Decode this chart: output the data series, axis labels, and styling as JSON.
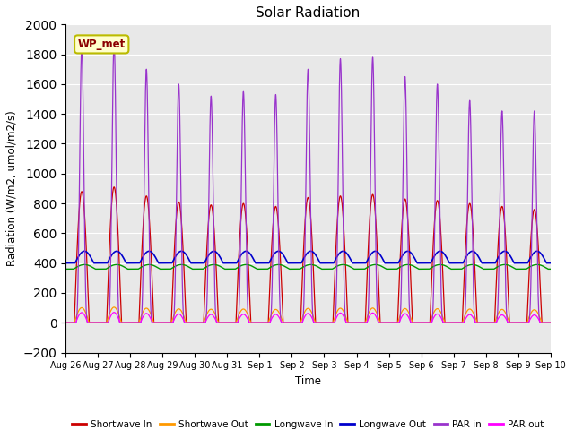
{
  "title": "Solar Radiation",
  "ylabel": "Radiation (W/m2, umol/m2/s)",
  "xlabel": "Time",
  "ylim": [
    -200,
    2000
  ],
  "yticks": [
    -200,
    0,
    200,
    400,
    600,
    800,
    1000,
    1200,
    1400,
    1600,
    1800,
    2000
  ],
  "station_label": "WP_met",
  "plot_bg_color": "#e8e8e8",
  "legend": [
    {
      "label": "Shortwave In",
      "color": "#cc0000"
    },
    {
      "label": "Shortwave Out",
      "color": "#ff9900"
    },
    {
      "label": "Longwave In",
      "color": "#009900"
    },
    {
      "label": "Longwave Out",
      "color": "#0000cc"
    },
    {
      "label": "PAR in",
      "color": "#9933cc"
    },
    {
      "label": "PAR out",
      "color": "#ff00ff"
    }
  ],
  "n_days": 15,
  "shortwave_in_peaks": [
    880,
    910,
    850,
    810,
    790,
    800,
    780,
    840,
    850,
    860,
    830,
    820,
    800,
    780,
    760
  ],
  "par_in_peaks": [
    1850,
    1880,
    1700,
    1600,
    1520,
    1550,
    1530,
    1700,
    1770,
    1780,
    1650,
    1600,
    1490,
    1420,
    1420
  ],
  "longwave_in_base": 360,
  "longwave_out_base": 400,
  "day_labels": [
    "Aug 26",
    "Aug 27",
    "Aug 28",
    "Aug 29",
    "Aug 30",
    "Aug 31",
    "Sep 1",
    "Sep 2",
    "Sep 3",
    "Sep 4",
    "Sep 5",
    "Sep 6",
    "Sep 7",
    "Sep 8",
    "Sep 9",
    "Sep 10"
  ]
}
